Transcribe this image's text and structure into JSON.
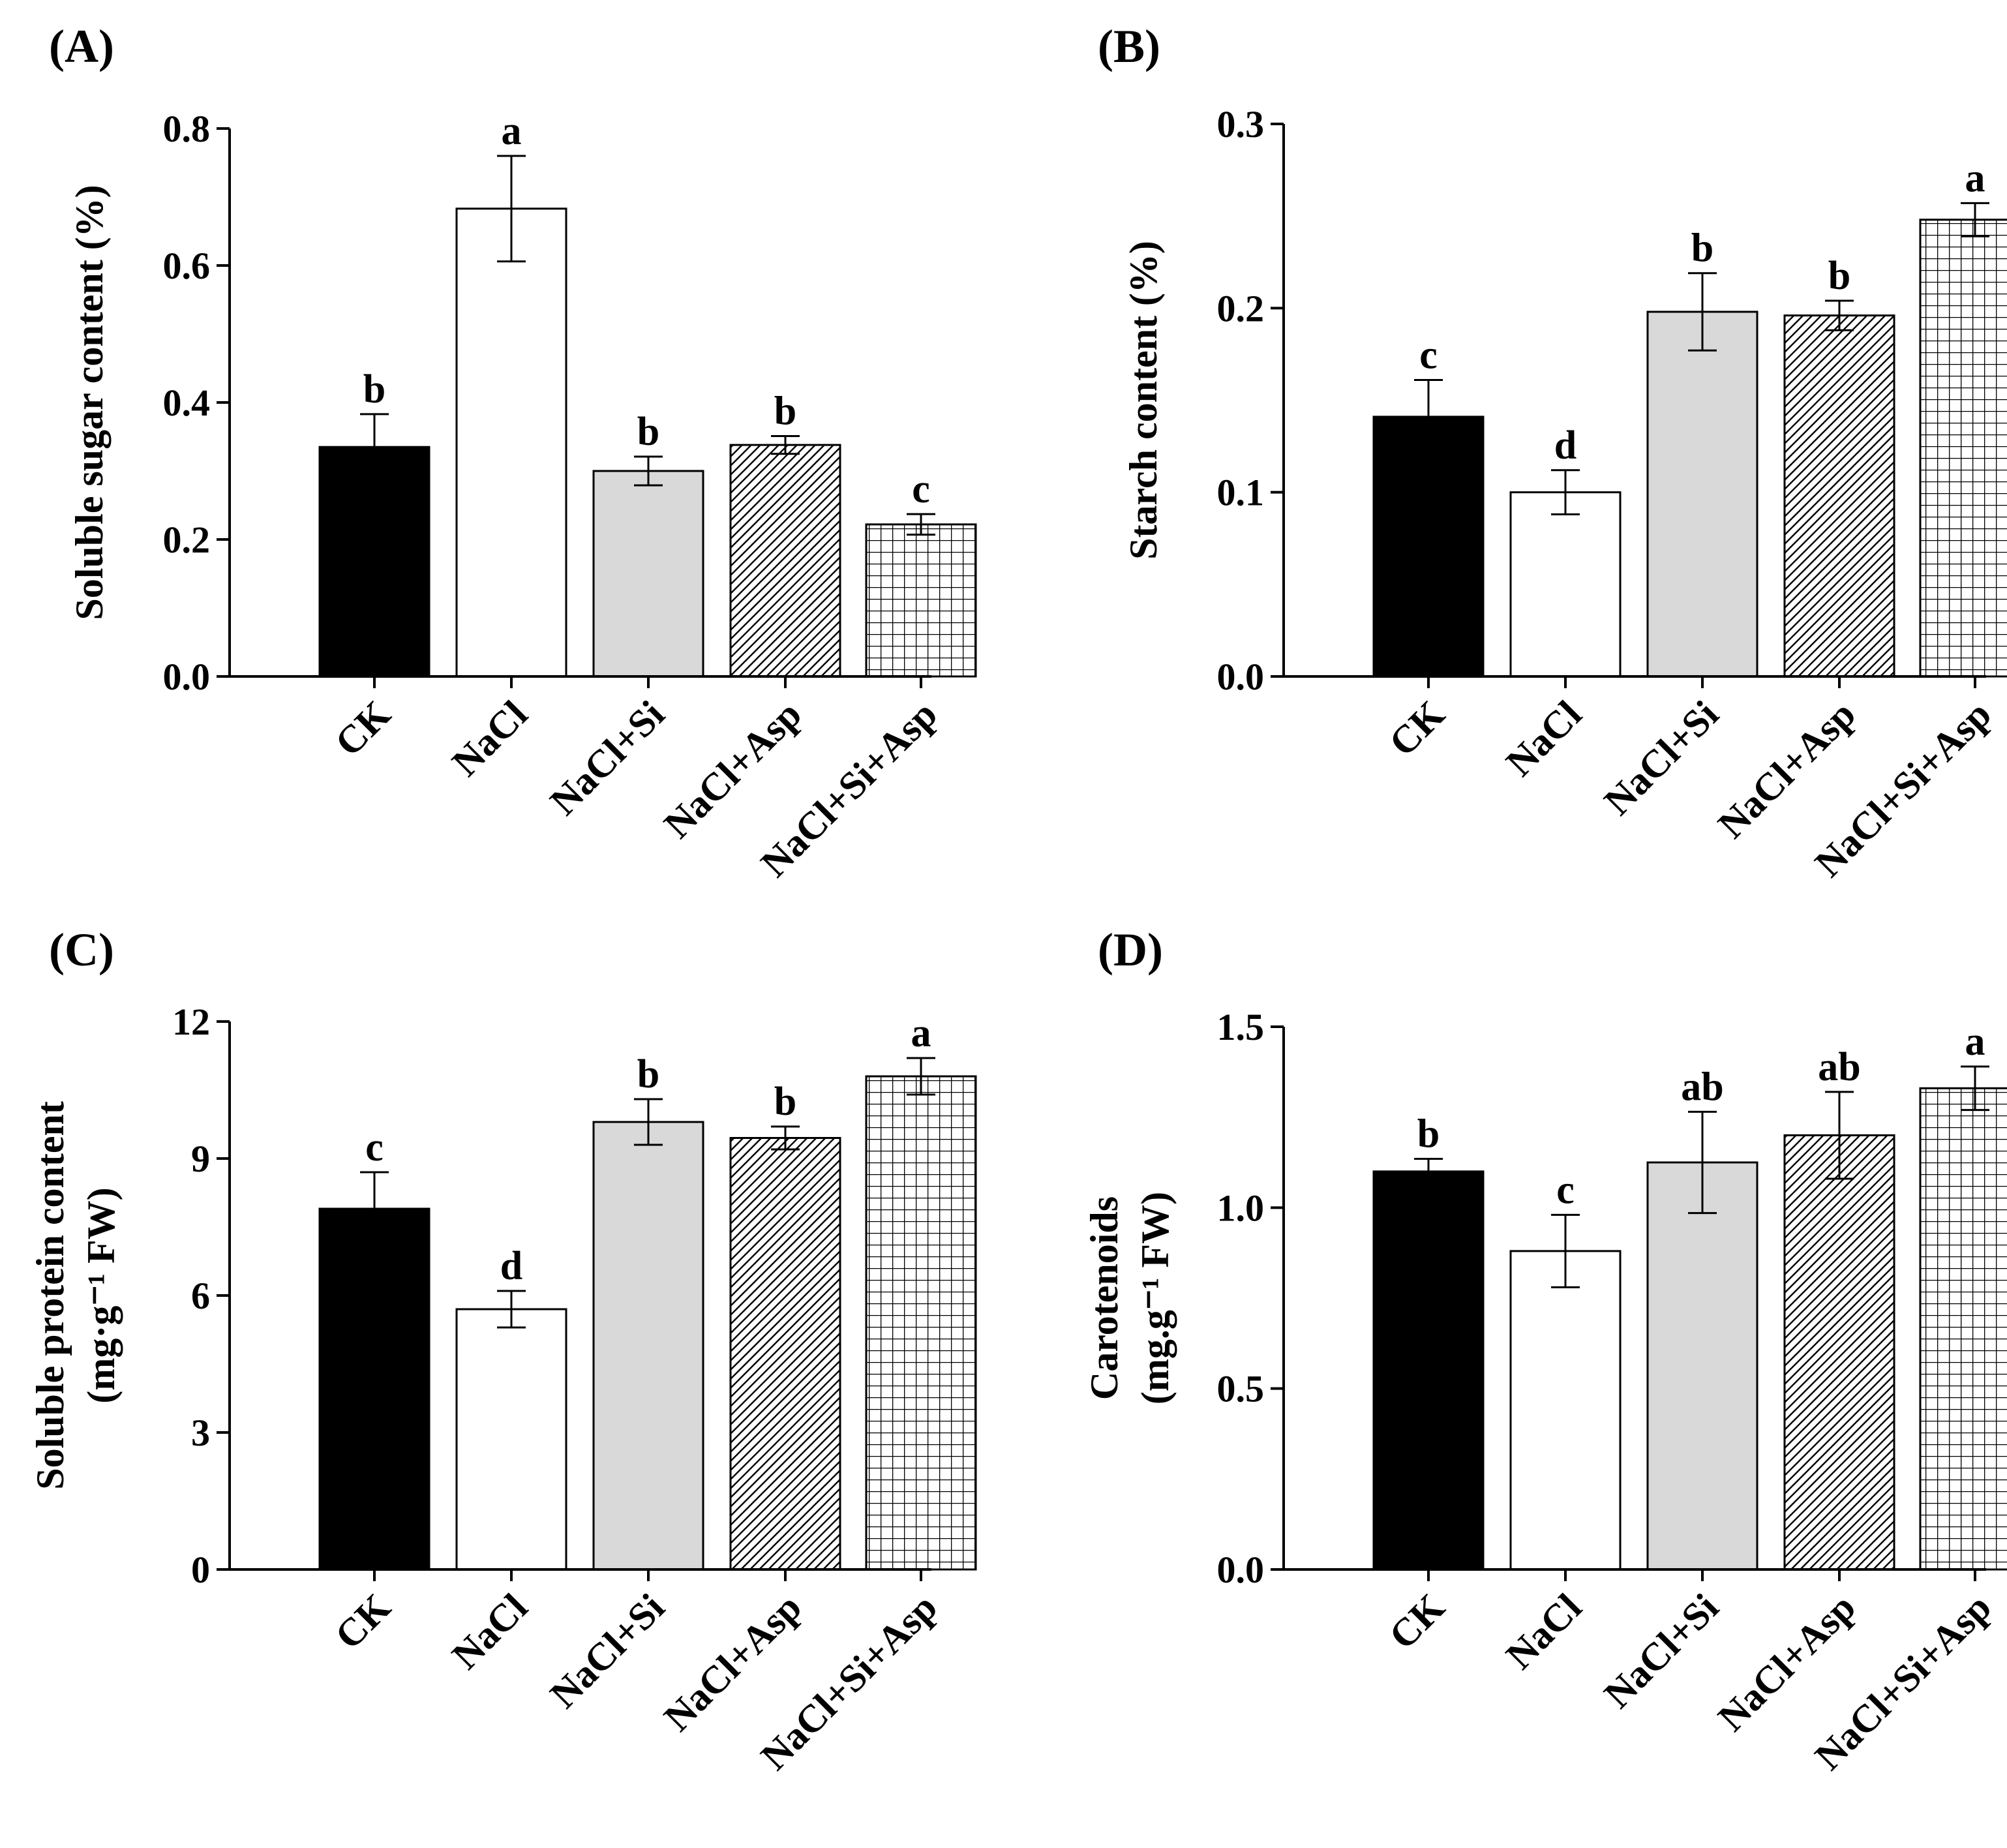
{
  "figure": {
    "series_colors": {
      "CK": "#000000",
      "NaCl": "#ffffff",
      "NaCl+Si": "#d9d9d9",
      "NaCl+Asp": "diagonal-hatch",
      "NaCl+Si+Asp": "grid-hatch"
    }
  },
  "chart_data": [
    {
      "panel": "(A)",
      "type": "bar",
      "categories": [
        "CK",
        "NaCl",
        "NaCl+Si",
        "NaCl+Asp",
        "NaCl+Si+Asp"
      ],
      "values": [
        0.335,
        0.683,
        0.3,
        0.338,
        0.222
      ],
      "errors": [
        0.048,
        0.077,
        0.021,
        0.013,
        0.015
      ],
      "significance": [
        "b",
        "a",
        "b",
        "b",
        "c"
      ],
      "ylabel": "Soluble sugar content (%)",
      "ylabel_lines": [
        "Soluble sugar content (%)"
      ],
      "ylim": [
        0,
        0.8
      ],
      "yticks": [
        0.0,
        0.2,
        0.4,
        0.6,
        0.8
      ],
      "ytick_labels": [
        "0.0",
        "0.2",
        "0.4",
        "0.6",
        "0.8"
      ]
    },
    {
      "panel": "(B)",
      "type": "bar",
      "categories": [
        "CK",
        "NaCl",
        "NaCl+Si",
        "NaCl+Asp",
        "NaCl+Si+Asp"
      ],
      "values": [
        0.141,
        0.1,
        0.198,
        0.196,
        0.248
      ],
      "errors": [
        0.02,
        0.012,
        0.021,
        0.008,
        0.009
      ],
      "significance": [
        "c",
        "d",
        "b",
        "b",
        "a"
      ],
      "ylabel": "Starch content (%)",
      "ylabel_lines": [
        "Starch content (%)"
      ],
      "ylim": [
        0,
        0.3
      ],
      "yticks": [
        0.0,
        0.1,
        0.2,
        0.3
      ],
      "ytick_labels": [
        "0.0",
        "0.1",
        "0.2",
        "0.3"
      ]
    },
    {
      "panel": "(C)",
      "type": "bar",
      "categories": [
        "CK",
        "NaCl",
        "NaCl+Si",
        "NaCl+Asp",
        "NaCl+Si+Asp"
      ],
      "values": [
        7.9,
        5.7,
        9.8,
        9.45,
        10.8
      ],
      "errors": [
        0.8,
        0.4,
        0.5,
        0.25,
        0.4
      ],
      "significance": [
        "c",
        "d",
        "b",
        "b",
        "a"
      ],
      "ylabel": "Soluble protein content (mg·g⁻¹ FW)",
      "ylabel_lines": [
        "Soluble protein content",
        "(mg·g⁻¹ FW)"
      ],
      "ylim": [
        0,
        12
      ],
      "yticks": [
        0,
        3,
        6,
        9,
        12
      ],
      "ytick_labels": [
        "0",
        "3",
        "6",
        "9",
        "12"
      ]
    },
    {
      "panel": "(D)",
      "type": "bar",
      "categories": [
        "CK",
        "NaCl",
        "NaCl+Si",
        "NaCl+Asp",
        "NaCl+Si+Asp"
      ],
      "values": [
        1.1,
        0.88,
        1.125,
        1.2,
        1.33
      ],
      "errors": [
        0.035,
        0.1,
        0.14,
        0.12,
        0.06
      ],
      "significance": [
        "b",
        "c",
        "ab",
        "ab",
        "a"
      ],
      "ylabel": "Carotenoids (mg.g⁻¹ FW)",
      "ylabel_lines": [
        "Carotenoids",
        "(mg.g⁻¹ FW)"
      ],
      "ylim": [
        0,
        1.5
      ],
      "yticks": [
        0.0,
        0.5,
        1.0,
        1.5
      ],
      "ytick_labels": [
        "0.0",
        "0.5",
        "1.0",
        "1.5"
      ]
    }
  ]
}
